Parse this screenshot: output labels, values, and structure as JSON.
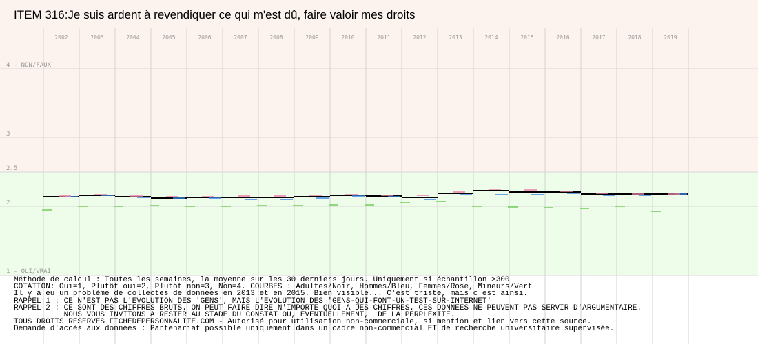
{
  "title": "ITEM 316:Je suis ardent à revendiquer ce qui m'est dû, faire valoir mes droits",
  "chart_data": {
    "type": "line",
    "x": [
      "2002",
      "2003",
      "2004",
      "2005",
      "2006",
      "2007",
      "2008",
      "2009",
      "2010",
      "2011",
      "2012",
      "2013",
      "2014",
      "2015",
      "2016",
      "2017",
      "2018",
      "2019"
    ],
    "ylim": [
      1,
      4
    ],
    "y_ticks": [
      {
        "value": 4,
        "label": "4 - NON/FAUX"
      },
      {
        "value": 3,
        "label": "3"
      },
      {
        "value": 2.5,
        "label": "2.5"
      },
      {
        "value": 2,
        "label": "2"
      },
      {
        "value": 1,
        "label": "1 - OUI/VRAI"
      }
    ],
    "bands": [
      {
        "from": 2.5,
        "to": 4,
        "color": "#fdf3ee"
      },
      {
        "from": 1,
        "to": 2.5,
        "color": "#eefdea"
      }
    ],
    "grid": true,
    "series": [
      {
        "name": "Adultes",
        "color": "#000000",
        "values": [
          2.14,
          2.16,
          2.14,
          2.12,
          2.13,
          2.13,
          2.13,
          2.14,
          2.16,
          2.15,
          2.13,
          2.19,
          2.23,
          2.21,
          2.21,
          2.18,
          2.18,
          2.18
        ]
      },
      {
        "name": "Hommes",
        "color": "#3a86e8",
        "values": [
          2.14,
          2.16,
          2.13,
          2.12,
          2.12,
          2.1,
          2.1,
          2.12,
          2.15,
          2.14,
          2.1,
          2.17,
          2.17,
          2.17,
          2.19,
          2.16,
          2.16,
          2.18
        ]
      },
      {
        "name": "Femmes",
        "color": "#e87fa6",
        "values": [
          2.15,
          2.17,
          2.15,
          2.14,
          2.14,
          2.15,
          2.15,
          2.16,
          2.17,
          2.16,
          2.16,
          2.21,
          2.25,
          2.24,
          2.22,
          2.19,
          2.18,
          2.18
        ]
      },
      {
        "name": "Mineurs",
        "color": "#78d060",
        "values": [
          1.95,
          2.0,
          2.0,
          2.01,
          2.0,
          2.0,
          2.01,
          2.01,
          2.02,
          2.02,
          2.06,
          2.07,
          2.0,
          1.99,
          1.98,
          1.97,
          2.0,
          1.93
        ]
      }
    ]
  },
  "notes": [
    "Méthode de calcul : Toutes les semaines, la moyenne sur les 30 derniers jours. Uniquement si échantillon >300",
    "COTATION: Oui=1, Plutôt oui=2, Plutôt non=3, Non=4. COURBES : Adultes/Noir, Hommes/Bleu, Femmes/Rose, Mineurs/Vert",
    "Il y a eu un problème de collectes de données en 2013 et en 2015. Bien visible... C'est triste, mais c'est ainsi.",
    "RAPPEL 1 : CE N'EST PAS L'EVOLUTION DES 'GENS', MAIS L'EVOLUTION DES 'GENS-QUI-FONT-UN-TEST-SUR-INTERNET'",
    "RAPPEL 2 : CE SONT DES CHIFFRES BRUTS. ON PEUT FAIRE DIRE N'IMPORTE QUOI A DES CHIFFRES. CES DONNEES NE PEUVENT PAS SERVIR D'ARGUMENTAIRE.",
    "           NOUS VOUS INVITONS A RESTER AU STADE DU CONSTAT OU, EVENTUELLEMENT,  DE LA PERPLEXITE.",
    "TOUS DROITS RESERVES FICHEDEPERSONNALITE.COM - Autorisé pour utilisation non-commerciale, si mention et lien vers cette source.",
    "Demande d'accès aux données : Partenariat possible uniquement dans un cadre non-commercial ET de recherche universitaire supervisée."
  ]
}
